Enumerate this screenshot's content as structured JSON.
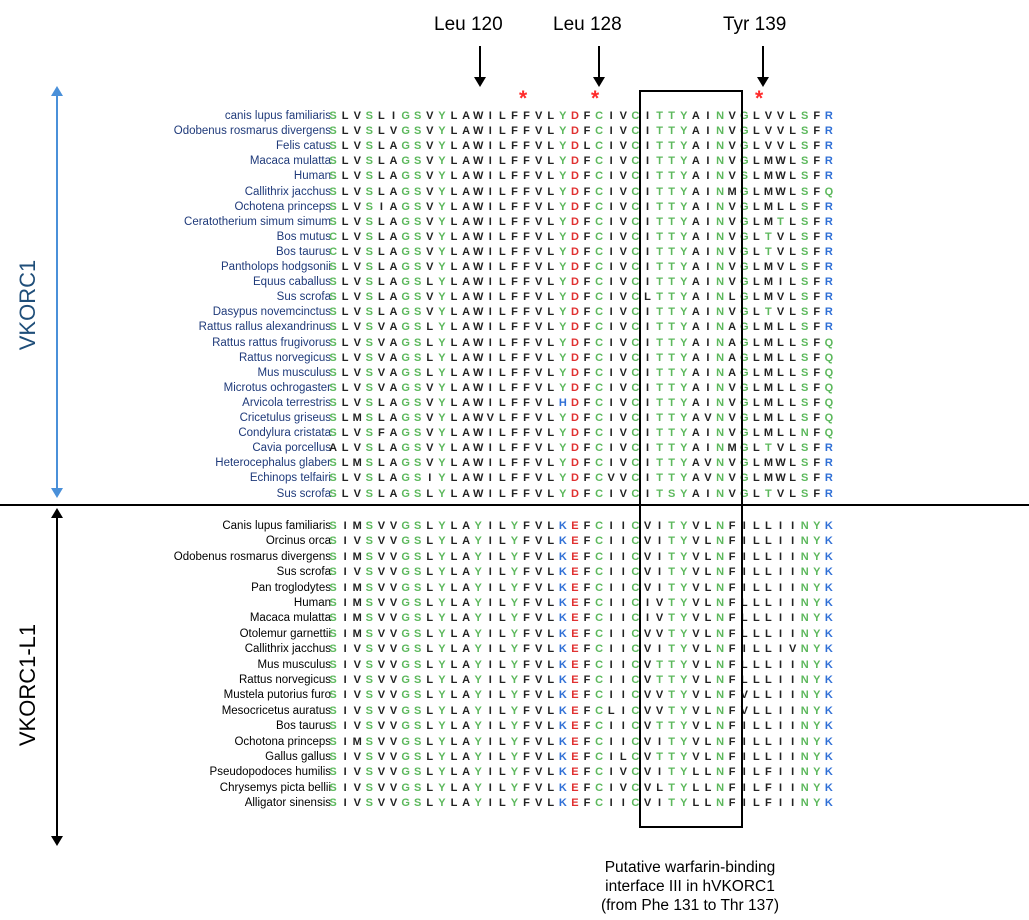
{
  "header_labels": [
    "Leu 120",
    "Leu 128",
    "Tyr 139"
  ],
  "star_symbol": "*",
  "groups": {
    "vkorc1": {
      "label": "VKORC1",
      "name_color": "#1f3a7a",
      "rows": [
        {
          "name": "canis lupus familiaris",
          "seq": "SLVSLIGSVYLAWILFFVLYDFCIVCITTYAINVGLVVLSFR"
        },
        {
          "name": "Odobenus rosmarus divergens",
          "seq": "SLVSLVGSVYLAWILFFVLYDFCIVCITTYAINVGLVVLSFR"
        },
        {
          "name": "Felis catus",
          "seq": "SLVSLAGSVYLAWILFFVLYDLCIVCITTYAINVGLVVLSFR"
        },
        {
          "name": "Macaca mulatta",
          "seq": "SLVSLAGSVYLAWILFFVLYDFCIVCITTYAINVGLMWLSFR"
        },
        {
          "name": "Human",
          "seq": "SLVSLAGSVYLAWILFFVLYDFCIVCITTYAINVSLMWLSFR"
        },
        {
          "name": "Callithrix jacchus",
          "seq": "SLVSLAGSVYLAWILFFVLYDFCIVCITTYAINMGLMWLSFQ"
        },
        {
          "name": "Ochotena princeps",
          "seq": "SLVSIAGSVYLAWILFFVLYDFCIVCITTYAINVGLMLLSFR"
        },
        {
          "name": "Ceratotherium simum simum",
          "seq": "SLVSLAGSVYLAWILFFVLYDFCIVCITTYAINVGLMTLSFR"
        },
        {
          "name": "Bos mutus",
          "seq": "CLVSLAGSVYLAWILFFVLYDFCIVCITTYAINVGLTVLSFR"
        },
        {
          "name": "Bos taurus",
          "seq": "CLVSLAGSVYLAWILFFVLYDFCIVCITTYAINVGLTVLSFR"
        },
        {
          "name": "Pantholops hodgsonii",
          "seq": "SLVSLAGSVYLAWILFFVLYDFCIVCITTYAINVGLMVLSFR"
        },
        {
          "name": "Equus caballus",
          "seq": "SLVSLAGSLYLAWILFFVLYDFCIVCITTYAINVGLMILSFR"
        },
        {
          "name": "Sus scrofa",
          "seq": "SLVSLAGSVYLAWILFFVLYDFCIVCLTTYAINLGLMVLSFR"
        },
        {
          "name": "Dasypus novemcinctus",
          "seq": "SLVSLAGSVYLAWILFFVLYDFCIVCITTYAINVGLTVLSFR"
        },
        {
          "name": "Rattus rallus alexandrinus",
          "seq": "SLVSVAGSLYLAWILFFVLYDFCIVCITTYAINAGLMLLSFR"
        },
        {
          "name": "Rattus rattus frugivorus",
          "seq": "SLVSVAGSLYLAWILFFVLYDFCIVCITTYAINAGLMLLSFQ"
        },
        {
          "name": "Rattus norvegicus",
          "seq": "SLVSVAGSLYLAWILFFVLYDFCIVCITTYAINAGLMLLSFQ"
        },
        {
          "name": "Mus musculus",
          "seq": "SLVSVAGSLYLAWILFFVLYDFCIVCITTYAINAGLMLLSFQ"
        },
        {
          "name": "Microtus ochrogaster",
          "seq": "SLVSVAGSVYLAWILFFVLYDFCIVCITTYAINVGLMLLSFQ"
        },
        {
          "name": "Arvicola terrestris",
          "seq": "SLVSLAGSVYLAWILFFVLHDFCIVCITTYAINVGLMLLSFQ"
        },
        {
          "name": "Cricetulus griseus",
          "seq": "SLMSLAGSVYLAWVLFFVLYDFCIVCITTYAVNVGLMLLSFQ"
        },
        {
          "name": "Condylura cristata",
          "seq": "SLVSFAGSVYLAWILFFVLYDFCIVCITTYAINVGLMLLNFQ"
        },
        {
          "name": "Cavia porcellus",
          "seq": "ALVSLAGSVYLAWILFFVLYDFCIVCITTYAINMGLTVLSFR"
        },
        {
          "name": "Heterocephalus glaber",
          "seq": "SLMSLAGSVYLAWILFFVLYDFCIVCITTYAVNVGLMWLSFR"
        },
        {
          "name": "Echinops telfairi",
          "seq": "SLVSLAGSIYLAWILFFVLYDFCVVCITTYAVNVGLMWLSFR"
        },
        {
          "name": "Sus scrofa",
          "seq": "SLVSLAGSLYLAWILFFVLYDFCIVCITSYAINVGLTVLSFR"
        }
      ]
    },
    "vkorc1l1": {
      "label": "VKORC1-L1",
      "name_color": "#000000",
      "rows": [
        {
          "name": "Canis lupus familiaris",
          "seq": "SIMSVVGSLYLAYILYFVLKEFCIICVITYVLNFILLIINYK"
        },
        {
          "name": "Orcinus orca",
          "seq": "SIVSVVGSLYLAYILYFVLKEFCIICVITYVLNFILLIINYK"
        },
        {
          "name": "Odobenus rosmarus divergens",
          "seq": "SIMSVVGSLYLAYILYFVLKEFCIICVITYVLNFILLIINYK"
        },
        {
          "name": "Sus scrofa",
          "seq": "SIVSVVGSLYLAYILYFVLKEFCIICVITYVLNFILLIINYK"
        },
        {
          "name": "Pan troglodytes",
          "seq": "SIMSVVGSLYLAYILYFVLKEFCIICVITYVLNFILLIINYK"
        },
        {
          "name": "Human",
          "seq": "SIMSVVGSLYLAYILYFVLKEFCIICIVTYVLNFLLLIINYK"
        },
        {
          "name": "Macaca mulatta",
          "seq": "SIMSVVGSLYLAYILYFVLKEFCIICIVTYVLNFLLLIINYK"
        },
        {
          "name": "Otolemur garnettii",
          "seq": "SIMSVVGSLYLAYILYFVLKEFCIICVVTYVLNFLLLIINYK"
        },
        {
          "name": "Callithrix jacchus",
          "seq": "SIVSVVGSLYLAYILYFVLKEFCIICVITYVLNFILLIVNYK"
        },
        {
          "name": "Mus musculus",
          "seq": "SIVSVVGSLYLAYILYFVLKEFCIICVTTYVLNFLLLIINYK"
        },
        {
          "name": "Rattus norvegicus",
          "seq": "SIVSVVGSLYLAYILYFVLKEFCIICVTTYVLNFLLLIINYK"
        },
        {
          "name": "Mustela putorius furo",
          "seq": "SIVSVVGSLYLAYILYFVLKEFCIICVVTYVLNFVLLIINYK"
        },
        {
          "name": "Mesocricetus auratus",
          "seq": "SIVSVVGSLYLAYILYFVLKEFCLICVVTYVLNFVLLIINYK"
        },
        {
          "name": "Bos taurus",
          "seq": "SIVSVVGSLYLAYILYFVLKEFCIICVTTYVLNFILLIINYK"
        },
        {
          "name": "Ochotona princeps",
          "seq": "SIMSVVGSLYLAYILYFVLKEFCIICVITYVLNFILLIINYK"
        },
        {
          "name": "Gallus gallus",
          "seq": "SIVSVVGSLYLAYILYFVLKEFCILCVTTYVLNFILLIINYK"
        },
        {
          "name": "Pseudopodoces humilis",
          "seq": "SIVSVVGSLYLAYILYFVLKEFCIVCVITYLLNFILFIINYK"
        },
        {
          "name": "Chrysemys picta bellii",
          "seq": "SIVSVVGSLYLAYILYFVLKEFCIVCVLTYLLNFILFIINYK"
        },
        {
          "name": "Alligator sinensis",
          "seq": "SIVSVVGSLYLAYILYFVLKEFCIICVITYLLNFILFIINYK"
        }
      ]
    }
  },
  "residue_colors": {
    "S": "#5cb85c",
    "T": "#5cb85c",
    "N": "#5cb85c",
    "Q": "#5cb85c",
    "G": "#5cb85c",
    "Y": "#5cb85c",
    "C": "#5cb85c",
    "A": "#222222",
    "V": "#222222",
    "L": "#222222",
    "I": "#222222",
    "M": "#222222",
    "F": "#222222",
    "W": "#222222",
    "P": "#222222",
    "K": "#2f6fd6",
    "R": "#2f6fd6",
    "H": "#2f6fd6",
    "D": "#e03030",
    "E": "#e03030"
  },
  "accent_colors": {
    "axis_arrow": "#4a90d9",
    "star": "#ff2a2a"
  },
  "caption": {
    "line1": "Putative warfarin-binding",
    "line2": "interface III in hVKORC1",
    "line3": "(from Phe 131 to Thr 137)"
  }
}
